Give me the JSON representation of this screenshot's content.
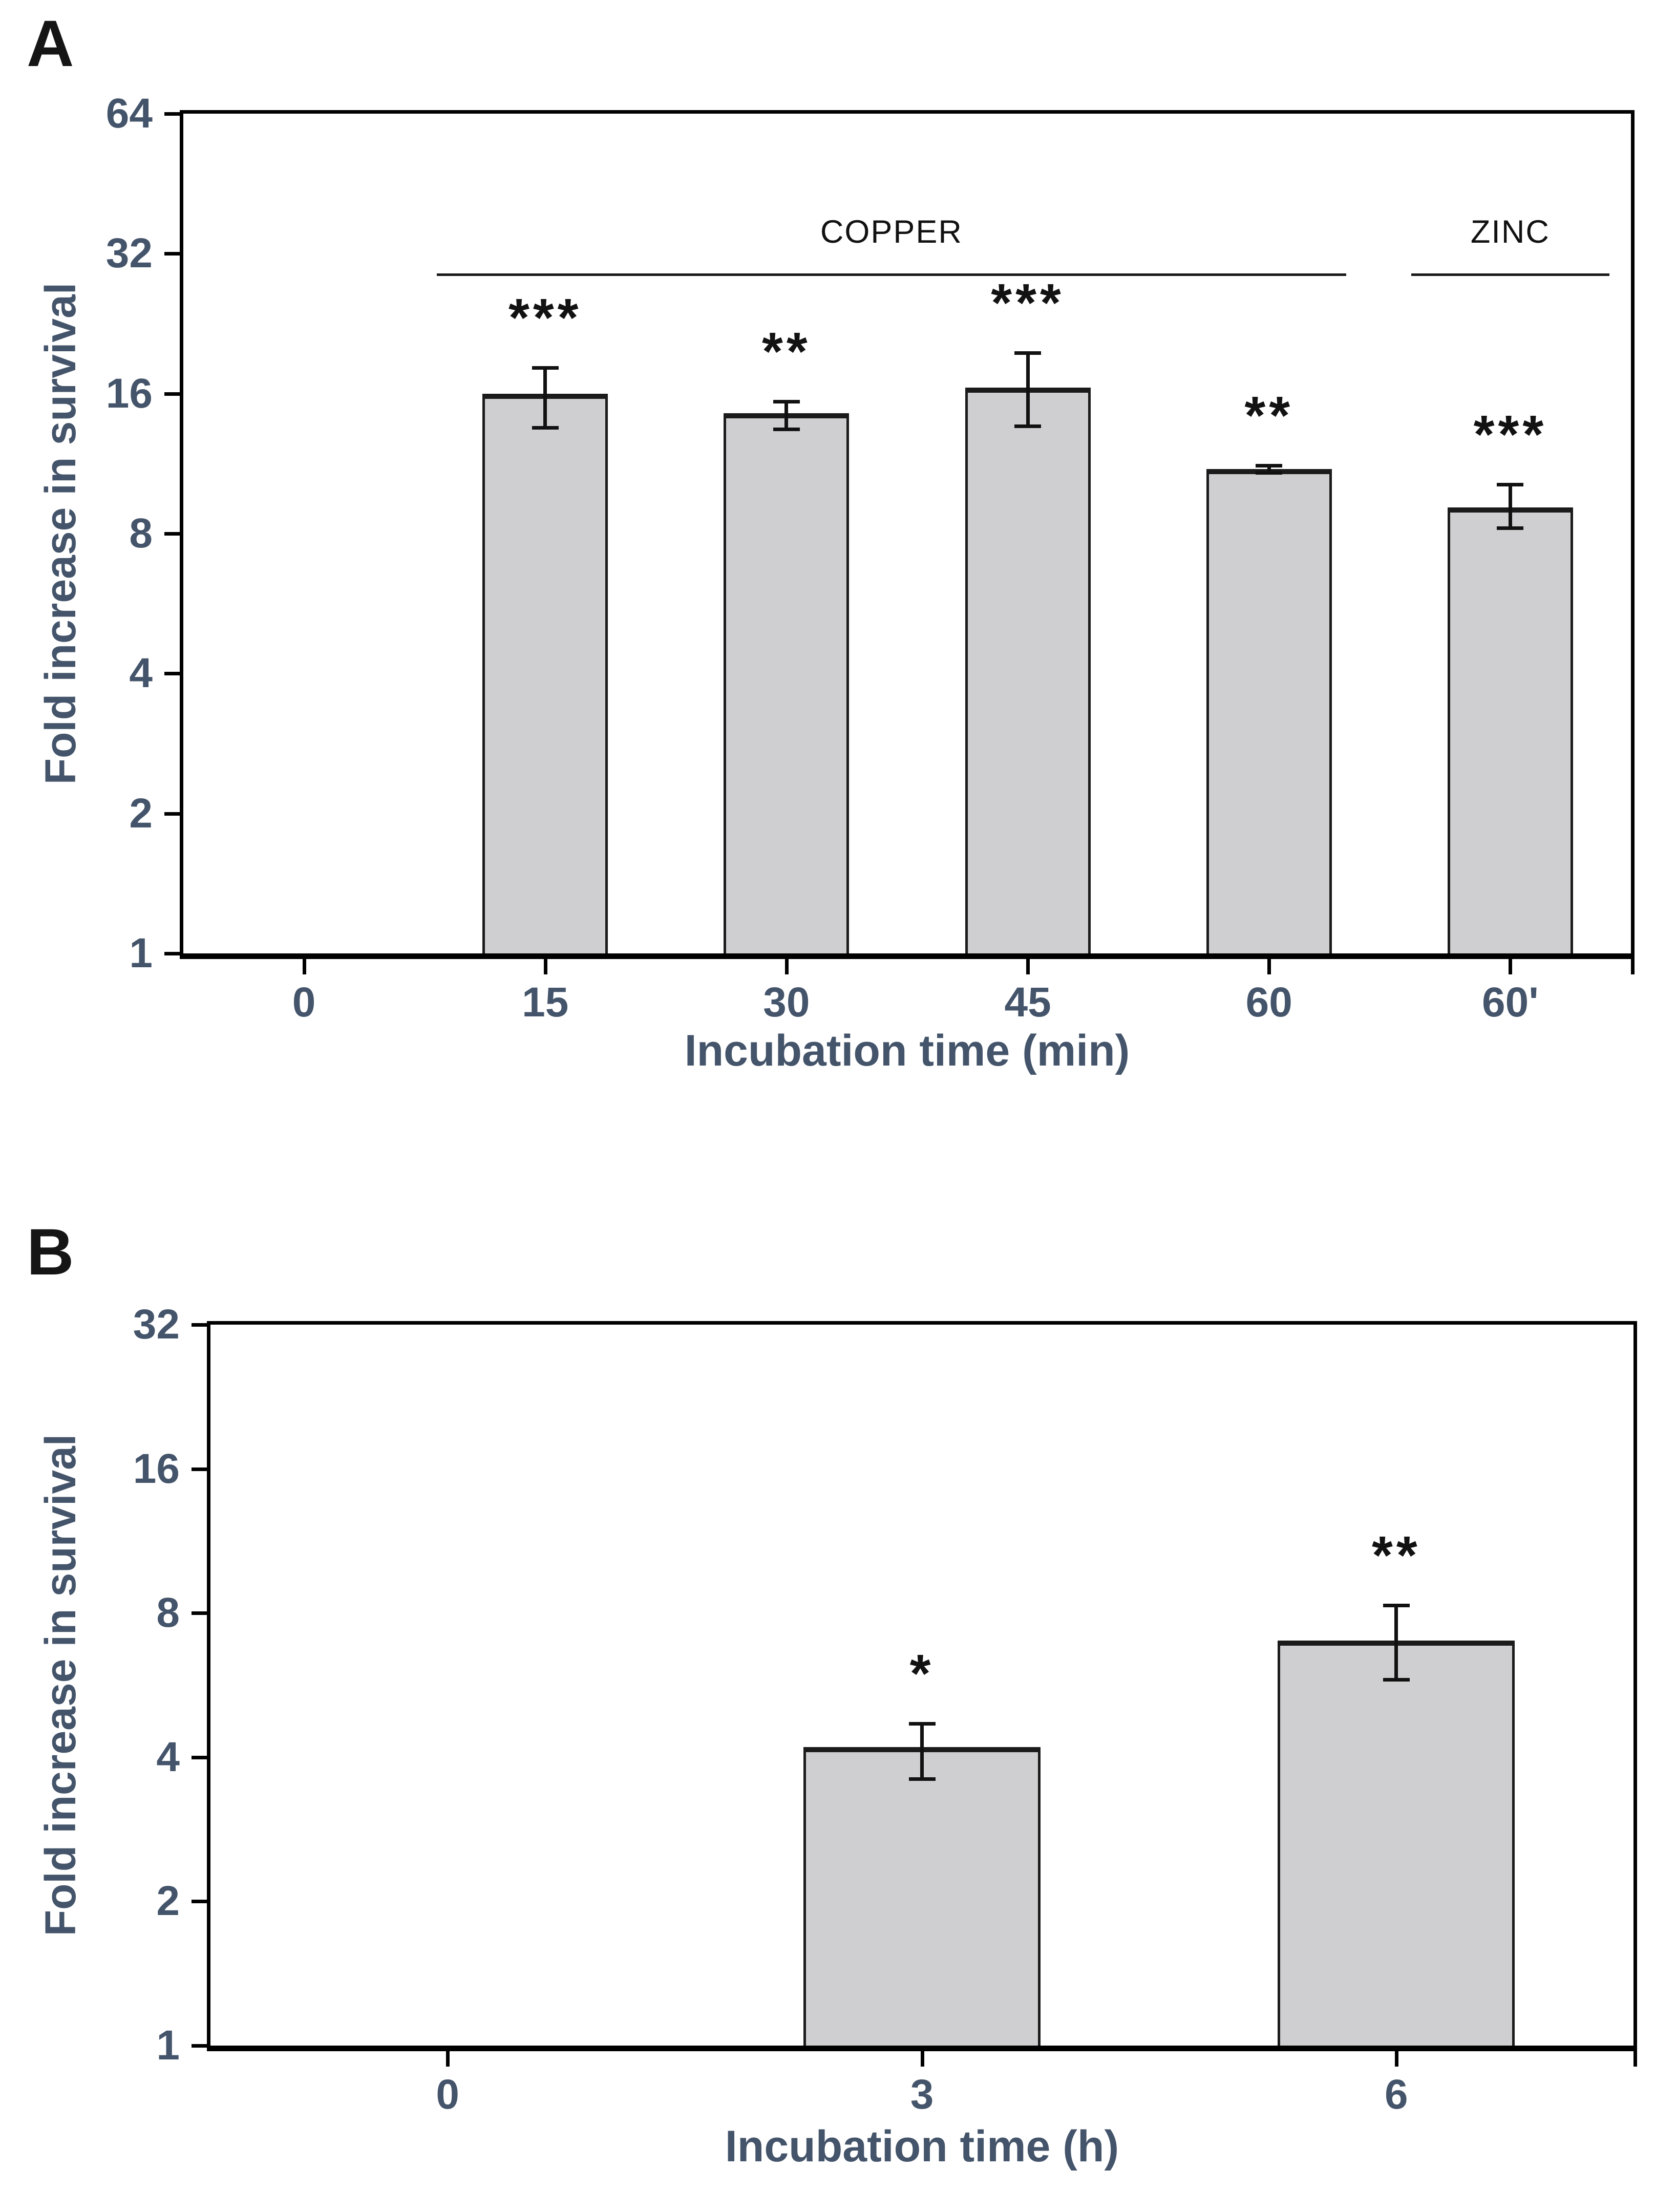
{
  "panels": [
    {
      "letter": "A"
    },
    {
      "letter": "B"
    }
  ],
  "colors": {
    "bar_fill": "#cfcfd1",
    "bar_border": "#1b1b1b",
    "axis": "#000000",
    "tick_label": "#44546a",
    "annotation_text": "#111111",
    "significance": "#121212"
  },
  "chart_data": [
    {
      "type": "bar",
      "panel": "A",
      "title": "",
      "xlabel": "Incubation time (min)",
      "ylabel": "Fold increase in survival",
      "yscale": "log2",
      "ylim": [
        1,
        64
      ],
      "yticks": [
        64,
        32,
        16,
        8,
        4,
        2,
        1
      ],
      "grid": false,
      "legend": null,
      "categories": [
        "0",
        "15",
        "30",
        "45",
        "60",
        "60'"
      ],
      "values": [
        null,
        16,
        14.5,
        16.5,
        11,
        9.1
      ],
      "error_low": [
        null,
        13.5,
        13.4,
        13.6,
        10.8,
        8.2
      ],
      "error_high": [
        null,
        18.2,
        15.4,
        19.6,
        11.2,
        10.2
      ],
      "significance": [
        null,
        "***",
        "**",
        "***",
        "**",
        "***"
      ],
      "annotations": [
        {
          "label": "COPPER",
          "from_cat": 1,
          "to_cat": 4,
          "y": 29
        },
        {
          "label": "ZINC",
          "from_cat": 5,
          "to_cat": 5,
          "y": 29
        }
      ]
    },
    {
      "type": "bar",
      "panel": "B",
      "title": "",
      "xlabel": "Incubation time (h)",
      "ylabel": "Fold increase in survival",
      "yscale": "log2",
      "ylim": [
        1,
        32
      ],
      "yticks": [
        32,
        16,
        8,
        4,
        2,
        1
      ],
      "grid": false,
      "legend": null,
      "categories": [
        "0",
        "3",
        "6"
      ],
      "values": [
        null,
        4.2,
        7.0
      ],
      "error_low": [
        null,
        3.6,
        5.8
      ],
      "error_high": [
        null,
        4.7,
        8.3
      ],
      "significance": [
        null,
        "*",
        "**"
      ],
      "annotations": []
    }
  ]
}
